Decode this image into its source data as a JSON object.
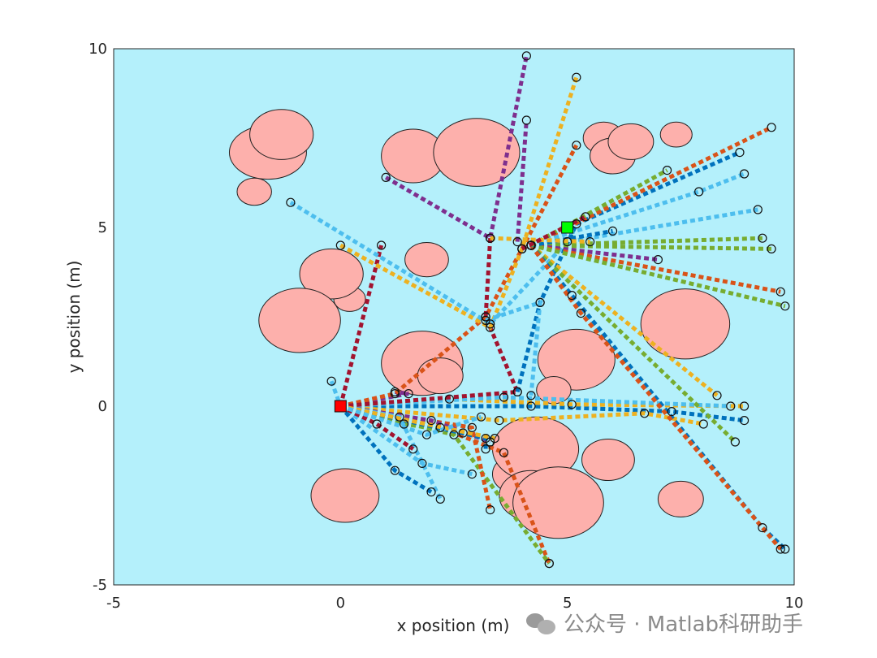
{
  "watermark": "公众号 · Matlab科研助手",
  "chart_data": {
    "type": "scatter",
    "xlabel": "x position (m)",
    "ylabel": "y position (m)",
    "xlim": [
      -5,
      10
    ],
    "ylim": [
      -5,
      10
    ],
    "xticks": [
      "-5",
      "0",
      "5",
      "10"
    ],
    "yticks": [
      "-5",
      "0",
      "5",
      "10"
    ],
    "grid": false,
    "background_color": "#b4f0fb",
    "obstacle_color": "#fdb0ac",
    "start": {
      "x": 0,
      "y": 0,
      "color": "#ff0000"
    },
    "goal": {
      "x": 5,
      "y": 5,
      "color": "#00ff00"
    },
    "obstacles": [
      {
        "x": -1.6,
        "y": 7.1,
        "rx": 0.85,
        "ry": 0.75
      },
      {
        "x": -1.3,
        "y": 7.6,
        "rx": 0.7,
        "ry": 0.7
      },
      {
        "x": -1.9,
        "y": 6.0,
        "rx": 0.38,
        "ry": 0.38
      },
      {
        "x": 1.6,
        "y": 7.0,
        "rx": 0.7,
        "ry": 0.75
      },
      {
        "x": 3.0,
        "y": 7.1,
        "rx": 0.95,
        "ry": 0.95
      },
      {
        "x": 5.8,
        "y": 7.5,
        "rx": 0.45,
        "ry": 0.45
      },
      {
        "x": 6.0,
        "y": 7.0,
        "rx": 0.5,
        "ry": 0.5
      },
      {
        "x": 6.4,
        "y": 7.4,
        "rx": 0.5,
        "ry": 0.5
      },
      {
        "x": 7.4,
        "y": 7.6,
        "rx": 0.35,
        "ry": 0.35
      },
      {
        "x": 1.9,
        "y": 4.1,
        "rx": 0.48,
        "ry": 0.48
      },
      {
        "x": 0.2,
        "y": 3.0,
        "rx": 0.35,
        "ry": 0.35
      },
      {
        "x": -0.2,
        "y": 3.7,
        "rx": 0.7,
        "ry": 0.7
      },
      {
        "x": -0.9,
        "y": 2.4,
        "rx": 0.9,
        "ry": 0.9
      },
      {
        "x": 1.8,
        "y": 1.2,
        "rx": 0.9,
        "ry": 0.9
      },
      {
        "x": 2.2,
        "y": 0.85,
        "rx": 0.5,
        "ry": 0.5
      },
      {
        "x": 5.2,
        "y": 1.3,
        "rx": 0.85,
        "ry": 0.85
      },
      {
        "x": 4.7,
        "y": 0.45,
        "rx": 0.38,
        "ry": 0.38
      },
      {
        "x": 7.6,
        "y": 2.3,
        "rx": 0.98,
        "ry": 0.98
      },
      {
        "x": 3.9,
        "y": -1.9,
        "rx": 0.55,
        "ry": 0.55
      },
      {
        "x": 4.3,
        "y": -1.2,
        "rx": 0.95,
        "ry": 0.9
      },
      {
        "x": 4.2,
        "y": -2.5,
        "rx": 0.7,
        "ry": 0.7
      },
      {
        "x": 4.8,
        "y": -2.7,
        "rx": 1.0,
        "ry": 1.0
      },
      {
        "x": 5.9,
        "y": -1.5,
        "rx": 0.58,
        "ry": 0.58
      },
      {
        "x": 7.5,
        "y": -2.6,
        "rx": 0.5,
        "ry": 0.5
      },
      {
        "x": 0.1,
        "y": -2.5,
        "rx": 0.75,
        "ry": 0.75
      }
    ],
    "series": [
      {
        "color": "#0072bd",
        "points": [
          [
            0,
            0
          ],
          [
            4.2,
            0
          ],
          [
            7.3,
            -0.15
          ],
          [
            8.9,
            -0.4
          ]
        ]
      },
      {
        "color": "#d95319",
        "points": [
          [
            0,
            0
          ],
          [
            2.2,
            -0.6
          ],
          [
            3.6,
            -1.3
          ],
          [
            4.6,
            -4.4
          ]
        ]
      },
      {
        "color": "#edb120",
        "points": [
          [
            0,
            0
          ],
          [
            2.4,
            0.2
          ],
          [
            5.1,
            0.05
          ],
          [
            8.9,
            0.0
          ]
        ]
      },
      {
        "color": "#7e2f8e",
        "points": [
          [
            0,
            0
          ],
          [
            1.5,
            0.35
          ],
          [
            1.2,
            0.4
          ]
        ]
      },
      {
        "color": "#77ac30",
        "points": [
          [
            0,
            0
          ],
          [
            2.5,
            -0.8
          ],
          [
            4.6,
            -4.4
          ]
        ]
      },
      {
        "color": "#4dbeee",
        "points": [
          [
            0,
            0
          ],
          [
            1.8,
            -1.6
          ],
          [
            2.9,
            -1.9
          ]
        ]
      },
      {
        "color": "#a2142f",
        "points": [
          [
            0,
            0
          ],
          [
            0.9,
            4.5
          ]
        ]
      },
      {
        "color": "#0072bd",
        "points": [
          [
            0,
            0
          ],
          [
            1.2,
            -1.8
          ],
          [
            2.0,
            -2.4
          ]
        ]
      },
      {
        "color": "#d95319",
        "points": [
          [
            0,
            0
          ],
          [
            2.9,
            -0.6
          ],
          [
            3.3,
            -2.9
          ]
        ]
      },
      {
        "color": "#edb120",
        "points": [
          [
            0,
            0
          ],
          [
            3.5,
            -0.4
          ],
          [
            6.7,
            -0.2
          ],
          [
            8.0,
            -0.5
          ]
        ]
      },
      {
        "color": "#7e2f8e",
        "points": [
          [
            0,
            0
          ],
          [
            2.0,
            -0.4
          ],
          [
            3.3,
            -1.0
          ]
        ]
      },
      {
        "color": "#77ac30",
        "points": [
          [
            0,
            0
          ],
          [
            1.4,
            -0.5
          ],
          [
            2.7,
            -0.75
          ]
        ]
      },
      {
        "color": "#4dbeee",
        "points": [
          [
            0,
            0
          ],
          [
            1.3,
            -0.3
          ],
          [
            2.2,
            -2.6
          ]
        ]
      },
      {
        "color": "#a2142f",
        "points": [
          [
            0,
            0
          ],
          [
            0.8,
            -0.5
          ],
          [
            1.6,
            -1.2
          ]
        ]
      },
      {
        "color": "#0072bd",
        "points": [
          [
            0,
            0
          ],
          [
            3.2,
            -0.9
          ],
          [
            3.2,
            -1.2
          ]
        ]
      },
      {
        "color": "#d95319",
        "points": [
          [
            0,
            0
          ],
          [
            1.2,
            0.35
          ],
          [
            3.2,
            2.5
          ],
          [
            4.0,
            4.4
          ],
          [
            5.2,
            7.3
          ]
        ]
      },
      {
        "color": "#4dbeee",
        "points": [
          [
            0,
            0
          ],
          [
            3.6,
            0.25
          ],
          [
            8.6,
            0.0
          ]
        ]
      },
      {
        "color": "#a2142f",
        "points": [
          [
            0,
            0
          ],
          [
            3.9,
            0.4
          ],
          [
            3.2,
            2.5
          ],
          [
            3.3,
            4.7
          ]
        ]
      },
      {
        "color": "#edb120",
        "points": [
          [
            0,
            4.5
          ],
          [
            3.3,
            2.2
          ],
          [
            4.0,
            4.4
          ],
          [
            5.2,
            9.2
          ]
        ]
      },
      {
        "color": "#4dbeee",
        "points": [
          [
            -1.1,
            5.7
          ],
          [
            3.3,
            2.3
          ],
          [
            5.0,
            4.6
          ],
          [
            9.2,
            5.5
          ]
        ]
      },
      {
        "color": "#7e2f8e",
        "points": [
          [
            1.0,
            6.4
          ],
          [
            3.3,
            4.7
          ],
          [
            4.1,
            9.8
          ]
        ]
      },
      {
        "color": "#0072bd",
        "points": [
          [
            3.9,
            0.4
          ],
          [
            4.4,
            2.9
          ],
          [
            5.2,
            5.1
          ],
          [
            8.8,
            7.1
          ]
        ]
      },
      {
        "color": "#d95319",
        "points": [
          [
            4.2,
            4.5
          ],
          [
            9.5,
            7.8
          ]
        ]
      },
      {
        "color": "#77ac30",
        "points": [
          [
            4.2,
            4.5
          ],
          [
            9.3,
            4.7
          ]
        ]
      },
      {
        "color": "#4dbeee",
        "points": [
          [
            4.2,
            4.5
          ],
          [
            7.9,
            6.0
          ],
          [
            8.9,
            6.5
          ]
        ]
      },
      {
        "color": "#77ac30",
        "points": [
          [
            4.2,
            4.5
          ],
          [
            9.5,
            4.4
          ]
        ]
      },
      {
        "color": "#7e2f8e",
        "points": [
          [
            4.2,
            4.5
          ],
          [
            7.0,
            4.1
          ]
        ]
      },
      {
        "color": "#d95319",
        "points": [
          [
            4.2,
            4.5
          ],
          [
            9.7,
            3.2
          ]
        ]
      },
      {
        "color": "#77ac30",
        "points": [
          [
            4.2,
            4.5
          ],
          [
            9.8,
            2.8
          ]
        ]
      },
      {
        "color": "#edb120",
        "points": [
          [
            4.2,
            4.5
          ],
          [
            8.3,
            0.3
          ]
        ]
      },
      {
        "color": "#77ac30",
        "points": [
          [
            4.2,
            4.5
          ],
          [
            8.7,
            -1.0
          ]
        ]
      },
      {
        "color": "#0072bd",
        "points": [
          [
            4.2,
            4.5
          ],
          [
            5.1,
            3.1
          ],
          [
            9.3,
            -3.4
          ],
          [
            9.8,
            -4.0
          ]
        ]
      },
      {
        "color": "#d95319",
        "points": [
          [
            4.2,
            4.5
          ],
          [
            5.3,
            2.6
          ],
          [
            9.7,
            -4.0
          ]
        ]
      },
      {
        "color": "#0072bd",
        "points": [
          [
            4.2,
            4.5
          ],
          [
            6.0,
            4.9
          ]
        ]
      },
      {
        "color": "#77ac30",
        "points": [
          [
            4.2,
            4.5
          ],
          [
            7.2,
            6.6
          ]
        ]
      },
      {
        "color": "#edb120",
        "points": [
          [
            3.3,
            4.7
          ],
          [
            5.5,
            4.6
          ]
        ]
      },
      {
        "color": "#7e2f8e",
        "points": [
          [
            3.9,
            4.6
          ],
          [
            4.1,
            8.0
          ]
        ]
      },
      {
        "color": "#4dbeee",
        "points": [
          [
            3.2,
            2.4
          ],
          [
            4.4,
            2.9
          ],
          [
            4.2,
            0.3
          ]
        ]
      },
      {
        "color": "#a2142f",
        "points": [
          [
            4.0,
            4.4
          ],
          [
            5.4,
            5.3
          ]
        ]
      },
      {
        "color": "#4dbeee",
        "points": [
          [
            -0.2,
            0.7
          ],
          [
            0.0,
            0.0
          ]
        ]
      },
      {
        "color": "#edb120",
        "points": [
          [
            0,
            0
          ],
          [
            3.4,
            -0.9
          ]
        ]
      },
      {
        "color": "#4dbeee",
        "points": [
          [
            0,
            0
          ],
          [
            1.9,
            -0.8
          ],
          [
            3.1,
            -0.3
          ]
        ]
      }
    ]
  }
}
